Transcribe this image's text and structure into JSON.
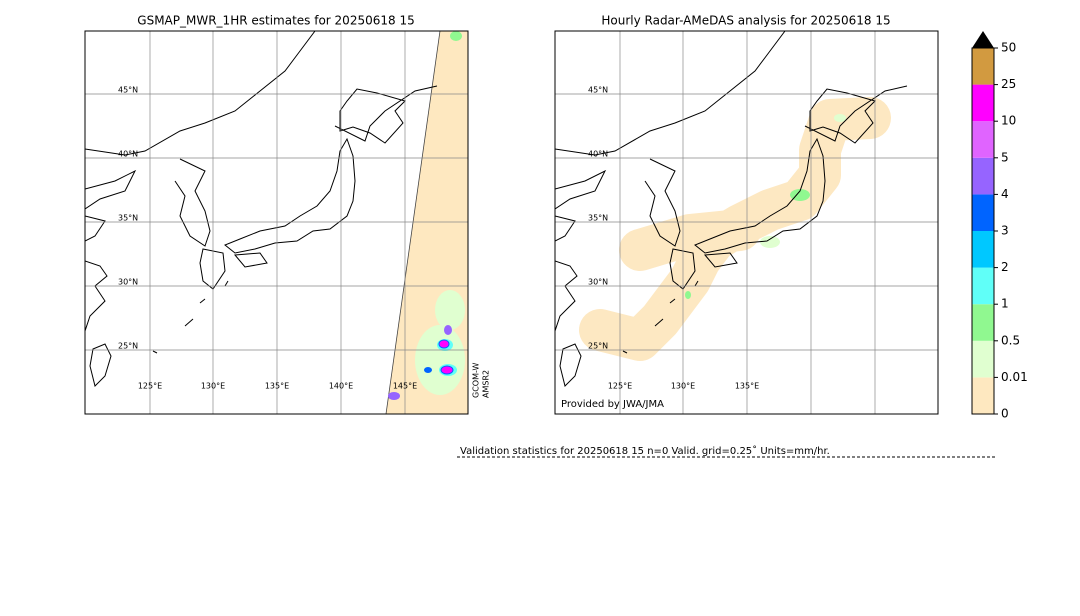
{
  "left_map": {
    "title": "GSMAP_MWR_1HR estimates for 20250618 15",
    "lat_labels": [
      "45°N",
      "40°N",
      "35°N",
      "30°N",
      "25°N"
    ],
    "lon_labels": [
      "125°E",
      "130°E",
      "135°E",
      "140°E",
      "145°E"
    ],
    "satellite_label": [
      "GCOM-W",
      "AMSR2"
    ]
  },
  "right_map": {
    "title": "Hourly Radar-AMeDAS analysis for 20250618 15",
    "lat_labels": [
      "45°N",
      "40°N",
      "35°N",
      "30°N",
      "25°N"
    ],
    "lon_labels": [
      "125°E",
      "130°E",
      "135°E"
    ],
    "credit": "Provided by JWA/JMA"
  },
  "colorbar": {
    "labels": [
      "0",
      "0.01",
      "0.5",
      "1",
      "2",
      "3",
      "4",
      "5",
      "10",
      "25",
      "50"
    ],
    "colors": [
      "#fee8c0",
      "#e0ffd0",
      "#90f890",
      "#60fff8",
      "#00c8ff",
      "#0064ff",
      "#9664ff",
      "#e064ff",
      "#ff00ff",
      "#d29a40"
    ],
    "extend_color": "#000000"
  },
  "validation": "Validation statistics for 20250618 15  n=0 Valid. grid=0.25˚ Units=mm/hr."
}
